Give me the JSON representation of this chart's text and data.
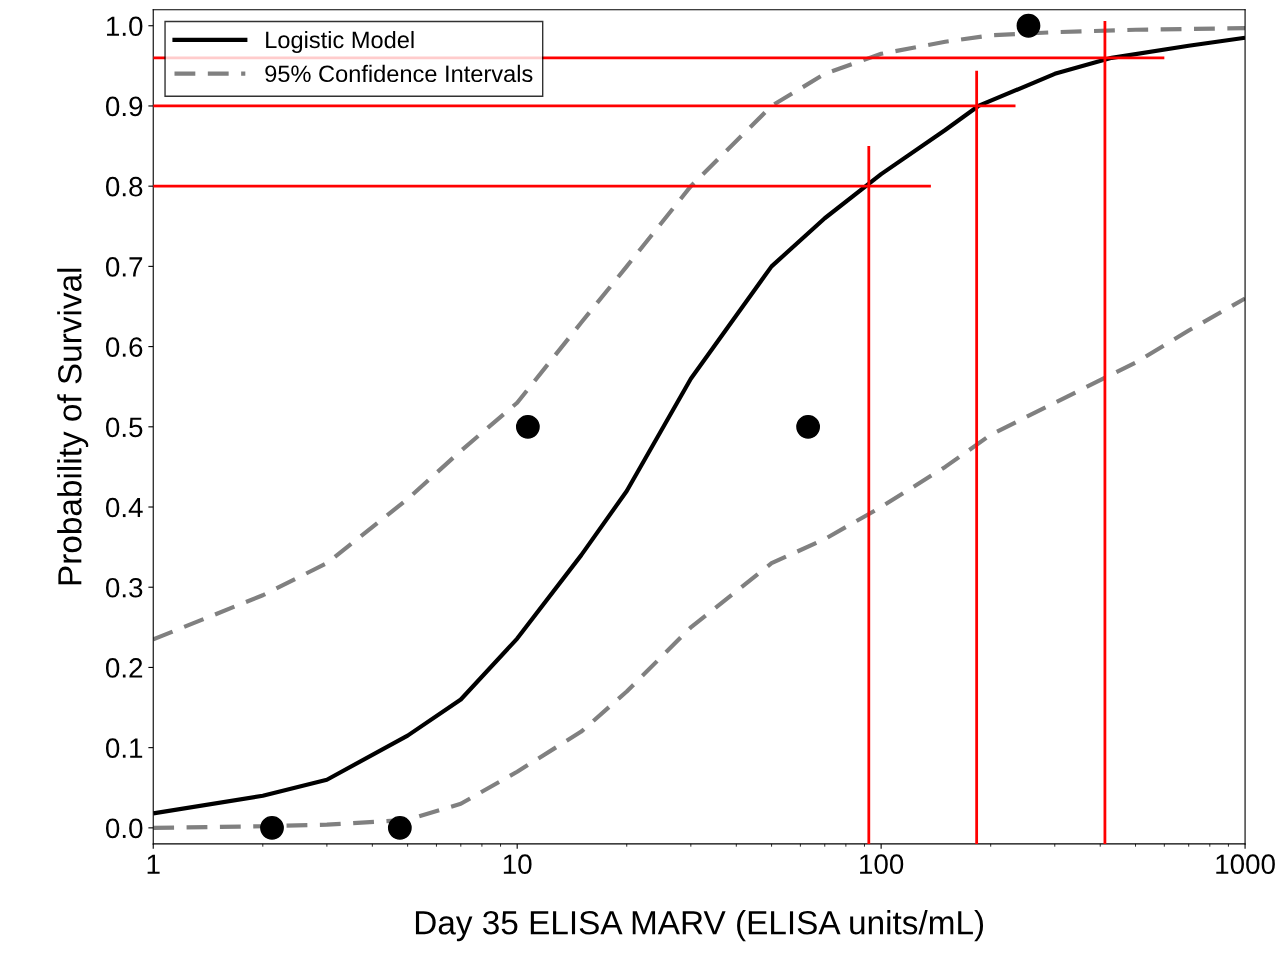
{
  "chart_data": {
    "type": "line",
    "xlabel": "Day 35 ELISA MARV (ELISA units/mL)",
    "ylabel": "Probability of Survival",
    "log": "x",
    "xlim": [
      1,
      1000
    ],
    "xticks": [
      1,
      10,
      100,
      1000
    ],
    "ylim": [
      -0.02,
      1.02
    ],
    "yticks": [
      {
        "value": 0,
        "label": "0.0"
      },
      0.1,
      0.2,
      0.3,
      0.4,
      0.5,
      0.6,
      0.7,
      0.8,
      0.9,
      {
        "value": 1,
        "label": "1.0"
      }
    ],
    "grid": false,
    "legend": "top left",
    "series": [
      {
        "name": "Logistic Model",
        "color": "#000000",
        "line_style": "solid",
        "x": [
          1,
          2,
          3,
          5,
          7,
          10,
          15,
          20,
          30,
          50,
          70,
          100,
          150,
          185,
          300,
          430,
          700,
          1000
        ],
        "values": [
          0.018,
          0.04,
          0.06,
          0.115,
          0.16,
          0.236,
          0.34,
          0.42,
          0.56,
          0.7,
          0.76,
          0.815,
          0.87,
          0.9,
          0.94,
          0.96,
          0.975,
          0.985
        ]
      },
      {
        "name": "95% Confidence Intervals",
        "color": "#808080",
        "line_style": "dashed",
        "x": [
          1,
          2,
          3,
          5,
          7,
          10,
          15,
          20,
          30,
          50,
          70,
          100,
          150,
          200,
          300,
          500,
          1000
        ],
        "values": [
          0.235,
          0.29,
          0.33,
          0.41,
          0.47,
          0.53,
          0.63,
          0.7,
          0.8,
          0.9,
          0.94,
          0.965,
          0.98,
          0.988,
          0.992,
          0.995,
          0.997
        ]
      },
      {
        "color": "#808080",
        "line_style": "dashed",
        "x": [
          1,
          2,
          3,
          5,
          7,
          10,
          15,
          20,
          30,
          50,
          70,
          100,
          150,
          200,
          300,
          500,
          700,
          1000
        ],
        "values": [
          0.0,
          0.002,
          0.004,
          0.01,
          0.03,
          0.07,
          0.12,
          0.17,
          0.25,
          0.33,
          0.36,
          0.4,
          0.45,
          0.49,
          0.53,
          0.58,
          0.62,
          0.66
        ]
      },
      {
        "type": "scatter",
        "color": "#000000",
        "marker": "circle",
        "x": [
          2.12,
          4.76,
          10.7,
          63,
          254
        ],
        "values": [
          0,
          0,
          0.5,
          0.5,
          1.0
        ]
      },
      {
        "color": "#ff0000",
        "line_style": "solid",
        "x": [
          1,
          137
        ],
        "values": [
          0.8,
          0.8
        ]
      },
      {
        "color": "#ff0000",
        "line_style": "solid",
        "x": [
          1,
          234
        ],
        "values": [
          0.9,
          0.9
        ]
      },
      {
        "color": "#ff0000",
        "line_style": "solid",
        "x": [
          1,
          600
        ],
        "values": [
          0.96,
          0.96
        ]
      },
      {
        "color": "#ff0000",
        "line_style": "solid",
        "x": [
          92.5,
          92.5
        ],
        "values": [
          -0.02,
          0.85
        ]
      },
      {
        "color": "#ff0000",
        "line_style": "solid",
        "x": [
          183,
          183
        ],
        "values": [
          -0.02,
          0.944
        ]
      },
      {
        "color": "#ff0000",
        "line_style": "solid",
        "x": [
          412,
          412
        ],
        "values": [
          -0.02,
          1.006
        ]
      }
    ]
  }
}
